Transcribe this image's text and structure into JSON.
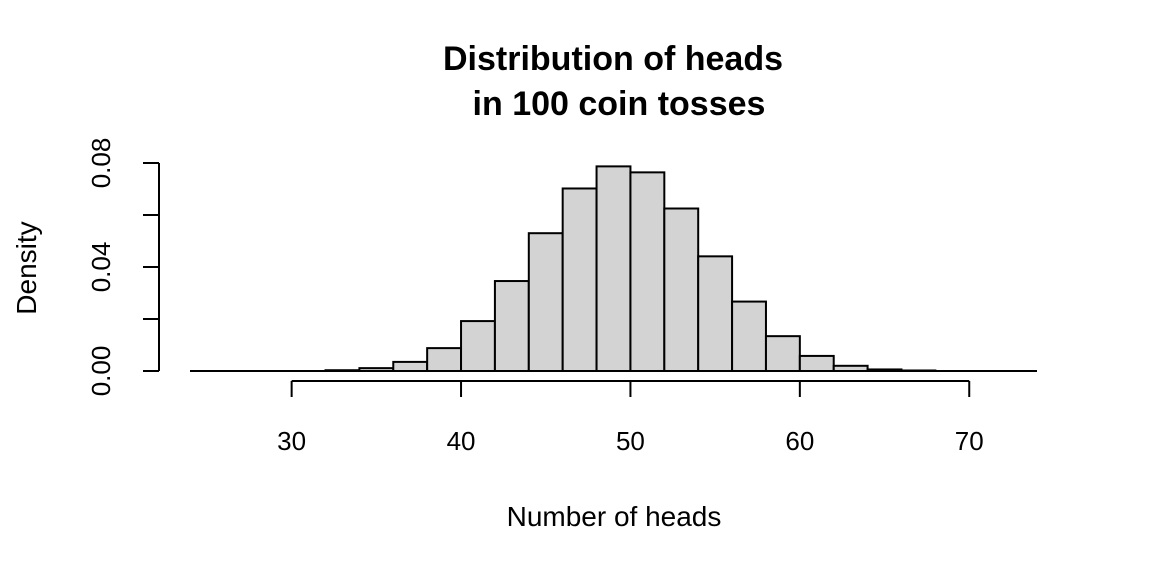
{
  "chart_data": {
    "type": "bar",
    "subtype": "histogram",
    "title": "Distribution of heads\nin 100 coin tosses",
    "title_lines": [
      "Distribution of heads",
      "in 100 coin tosses"
    ],
    "xlabel": "Number of heads",
    "ylabel": "Density",
    "bin_edges": [
      24,
      26,
      28,
      30,
      32,
      34,
      36,
      38,
      40,
      42,
      44,
      46,
      48,
      50,
      52,
      54,
      56,
      58,
      60,
      62,
      64,
      66,
      68,
      70,
      72,
      74
    ],
    "values": [
      0.0,
      0.0,
      0.0,
      0.0,
      0.0003,
      0.0011,
      0.0035,
      0.0088,
      0.0192,
      0.0346,
      0.053,
      0.0702,
      0.0787,
      0.0764,
      0.0625,
      0.0441,
      0.0267,
      0.0134,
      0.0058,
      0.002,
      0.0006,
      0.0002,
      0.0,
      0.0,
      0.0
    ],
    "xlim": [
      24,
      74
    ],
    "ylim": [
      0,
      0.08
    ],
    "x_ticks": [
      30,
      40,
      50,
      60,
      70
    ],
    "x_tick_labels": [
      "30",
      "40",
      "50",
      "60",
      "70"
    ],
    "y_ticks": [
      0.0,
      0.02,
      0.04,
      0.06,
      0.08
    ],
    "y_tick_labels": [
      "0.00",
      "",
      "0.04",
      "",
      "0.08"
    ],
    "bar_fill": "#d3d3d3",
    "bar_stroke": "#000000",
    "grid": false,
    "legend": "none"
  }
}
